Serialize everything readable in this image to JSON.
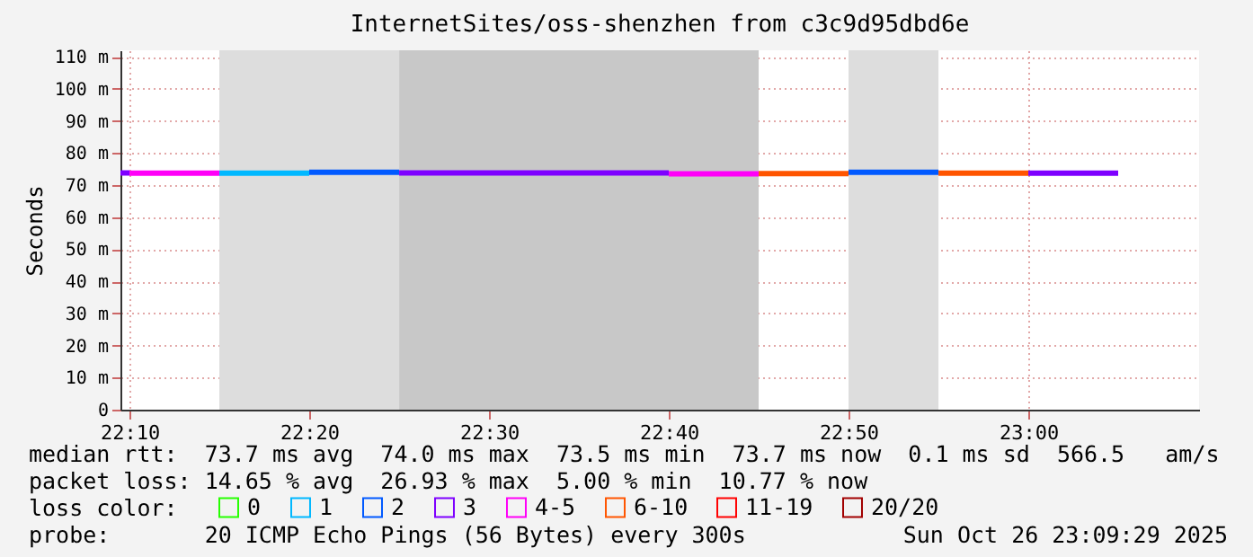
{
  "chart_data": {
    "type": "line",
    "title": "InternetSites/oss-shenzhen from c3c9d95dbd6e",
    "ylabel": "Seconds",
    "legend_title": "loss color:",
    "xlim": [
      22.1583,
      23.1583
    ],
    "xticks": [
      {
        "value": 22.1667,
        "label": "22:10"
      },
      {
        "value": 22.3333,
        "label": "22:20"
      },
      {
        "value": 22.5,
        "label": "22:30"
      },
      {
        "value": 22.6667,
        "label": "22:40"
      },
      {
        "value": 22.8333,
        "label": "22:50"
      },
      {
        "value": 23,
        "label": "23:00"
      }
    ],
    "ylim": [
      0,
      112
    ],
    "yticks": [
      0,
      {
        "value": 10,
        "label": "10 m"
      },
      {
        "value": 20,
        "label": "20 m"
      },
      {
        "value": 30,
        "label": "30 m"
      },
      {
        "value": 40,
        "label": "40 m"
      },
      {
        "value": 50,
        "label": "50 m"
      },
      {
        "value": 60,
        "label": "60 m"
      },
      {
        "value": 70,
        "label": "70 m"
      },
      {
        "value": 80,
        "label": "80 m"
      },
      {
        "value": 90,
        "label": "90 m"
      },
      {
        "value": 100,
        "label": "100 m"
      },
      {
        "value": 110,
        "label": "110 m"
      }
    ],
    "grid": true,
    "legend": "bottom left",
    "bands": [
      {
        "axis": "x",
        "from": 22.25,
        "to": 22.4167,
        "color": "#dddddd"
      },
      {
        "axis": "x",
        "from": 22.4167,
        "to": 22.75,
        "color": "#c8c8c8"
      },
      {
        "axis": "x",
        "from": 22.8333,
        "to": 22.9167,
        "color": "#dddddd"
      }
    ],
    "series": [
      {
        "name": "0",
        "color": "#26ff00"
      },
      {
        "name": "1",
        "color": "#00b8ff",
        "x": [
          22.25,
          22.3333
        ],
        "values": [
          73.7,
          73.7
        ]
      },
      {
        "name": "2",
        "color": "#0059ff",
        "x": [
          22.3333,
          22.4167,
          22.6,
          22.8333,
          22.9167
        ],
        "values": [
          74.0,
          74.0,
          null,
          74.0,
          74.0
        ]
      },
      {
        "name": "3",
        "color": "#7e00ff",
        "x": [
          22.1583,
          22.1667,
          22.3,
          22.4167,
          22.6667,
          22.8,
          23,
          23.0833
        ],
        "values": [
          73.8,
          73.8,
          null,
          73.8,
          73.8,
          null,
          73.7,
          73.7
        ]
      },
      {
        "name": "4-5",
        "color": "#ff00f8",
        "x": [
          22.1667,
          22.25,
          22.5,
          22.6667,
          22.75
        ],
        "values": [
          73.7,
          73.7,
          null,
          73.5,
          73.5
        ]
      },
      {
        "name": "6-10",
        "color": "#ff5500",
        "x": [
          22.75,
          22.8333,
          22.85,
          22.9167,
          23
        ],
        "values": [
          73.6,
          73.6,
          null,
          73.7,
          73.7
        ]
      },
      {
        "name": "11-19",
        "color": "#ff0000"
      },
      {
        "name": "20/20",
        "color": "#a10000"
      }
    ],
    "annotations": [
      "median rtt:  73.7 ms avg  74.0 ms max  73.5 ms min  73.7 ms now  0.1 ms sd  566.5   am/s",
      "packet loss: 14.65 % avg  26.93 % max  5.00 % min  10.77 % now",
      "probe:       20 ICMP Echo Pings (56 Bytes) every 300s",
      "Sun Oct 26 23:09:29 2025"
    ]
  }
}
